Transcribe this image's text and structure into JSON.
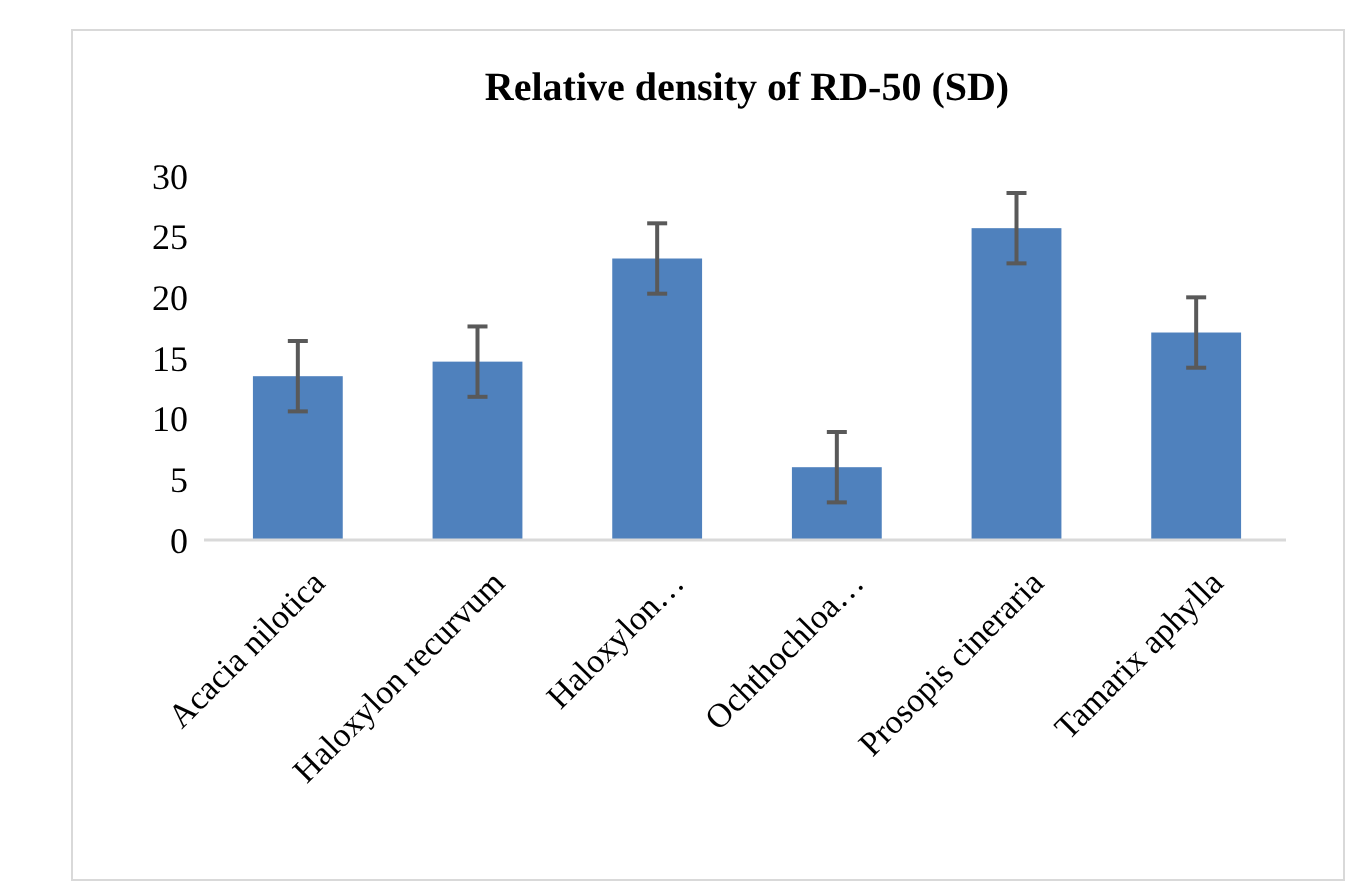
{
  "chart_data": {
    "type": "bar",
    "title": "Relative density of RD-50 (SD)",
    "categories": [
      "Acacia nilotica",
      "Haloxylon recurvum",
      "Haloxylon…",
      "Ochthochloa…",
      "Prosopis cineraria",
      "Tamarix aphylla"
    ],
    "values": [
      13.5,
      14.7,
      23.2,
      6.0,
      25.7,
      17.1
    ],
    "errors": [
      2.9,
      2.9,
      2.9,
      2.9,
      2.9,
      2.9
    ],
    "color": "#4f81bd",
    "ylim": [
      0,
      30
    ],
    "yticks": [
      0,
      5,
      10,
      15,
      20,
      25,
      30
    ],
    "grid": false
  }
}
